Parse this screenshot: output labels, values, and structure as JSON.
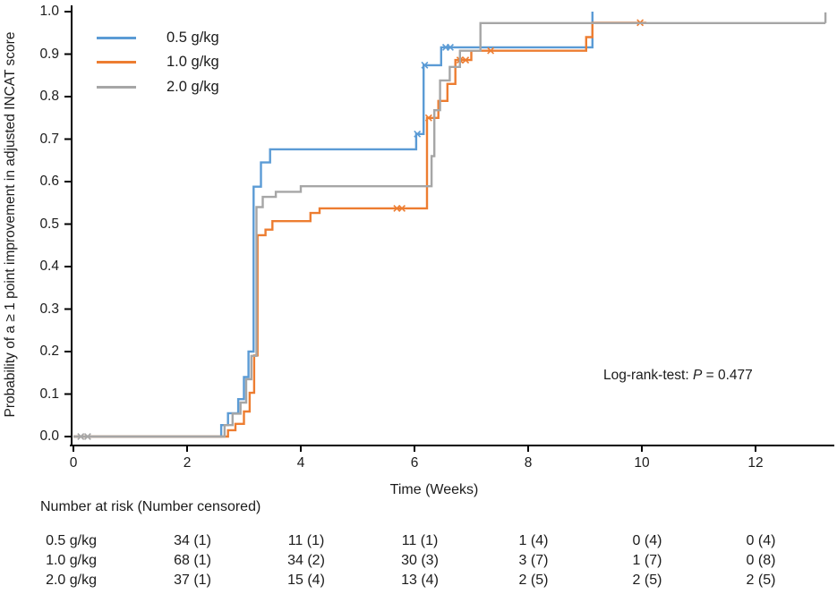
{
  "figure": {
    "y_axis": {
      "title": "Probability of a ≥ 1 point improvement in adjusted INCAT score",
      "ticks": [
        {
          "v": 0.0,
          "label": "0.0"
        },
        {
          "v": 0.1,
          "label": "0.1"
        },
        {
          "v": 0.2,
          "label": "0.2"
        },
        {
          "v": 0.3,
          "label": "0.3"
        },
        {
          "v": 0.4,
          "label": "0.4"
        },
        {
          "v": 0.5,
          "label": "0.5"
        },
        {
          "v": 0.6,
          "label": "0.6"
        },
        {
          "v": 0.7,
          "label": "0.7"
        },
        {
          "v": 0.8,
          "label": "0.8"
        },
        {
          "v": 0.9,
          "label": "0.9"
        },
        {
          "v": 1.0,
          "label": "1.0"
        }
      ]
    },
    "x_axis": {
      "title": "Time (Weeks)",
      "ticks": [
        {
          "v": 0,
          "label": "0"
        },
        {
          "v": 2,
          "label": "2"
        },
        {
          "v": 4,
          "label": "4"
        },
        {
          "v": 6,
          "label": "6"
        },
        {
          "v": 8,
          "label": "8"
        },
        {
          "v": 10,
          "label": "10"
        },
        {
          "v": 12,
          "label": "12"
        }
      ]
    },
    "legend": [
      {
        "label": "0.5 g/kg",
        "color": "#5B9BD5"
      },
      {
        "label": "1.0 g/kg",
        "color": "#ED7D31"
      },
      {
        "label": "2.0 g/kg",
        "color": "#A6A6A6"
      }
    ],
    "annotation": {
      "prefix": "Log-rank-test: ",
      "stat": "P",
      "rest": " = 0.477"
    }
  },
  "chart_data": {
    "type": "line",
    "subtype": "kaplan-meier-step",
    "title": "",
    "xlabel": "Time (Weeks)",
    "ylabel": "Probability of a ≥ 1 point improvement in adjusted INCAT score",
    "xlim": [
      0,
      13.4
    ],
    "ylim": [
      0.0,
      1.0
    ],
    "x_ticks": [
      0,
      2,
      4,
      6,
      8,
      10,
      12
    ],
    "y_ticks": [
      0.0,
      0.1,
      0.2,
      0.3,
      0.4,
      0.5,
      0.6,
      0.7,
      0.8,
      0.9,
      1.0
    ],
    "grid": false,
    "legend_position": "top-left-inside",
    "annotation_text": "Log-rank-test: P = 0.477",
    "series": [
      {
        "name": "0.5 g/kg",
        "color": "#5B9BD5",
        "step_points": [
          [
            0,
            0
          ],
          [
            2.6,
            0.027
          ],
          [
            2.72,
            0.055
          ],
          [
            2.9,
            0.088
          ],
          [
            3.0,
            0.14
          ],
          [
            3.08,
            0.2
          ],
          [
            3.17,
            0.588
          ],
          [
            3.3,
            0.645
          ],
          [
            3.46,
            0.676
          ],
          [
            6.03,
            0.712
          ],
          [
            6.16,
            0.874
          ],
          [
            6.47,
            0.916
          ],
          [
            9.13,
            1.0
          ]
        ],
        "end_time": 9.13,
        "censored": [
          [
            6.05,
            0.712
          ],
          [
            6.18,
            0.874
          ],
          [
            6.55,
            0.916
          ],
          [
            6.63,
            0.916
          ]
        ]
      },
      {
        "name": "1.0 g/kg",
        "color": "#ED7D31",
        "step_points": [
          [
            0,
            0
          ],
          [
            2.72,
            0.015
          ],
          [
            2.85,
            0.03
          ],
          [
            3.0,
            0.059
          ],
          [
            3.1,
            0.103
          ],
          [
            3.18,
            0.191
          ],
          [
            3.24,
            0.474
          ],
          [
            3.38,
            0.487
          ],
          [
            3.5,
            0.507
          ],
          [
            4.17,
            0.526
          ],
          [
            4.33,
            0.537
          ],
          [
            6.22,
            0.75
          ],
          [
            6.42,
            0.79
          ],
          [
            6.58,
            0.83
          ],
          [
            6.72,
            0.886
          ],
          [
            7.0,
            0.908
          ],
          [
            9.02,
            0.94
          ],
          [
            9.13,
            0.974
          ]
        ],
        "end_time": 10.08,
        "censored": [
          [
            5.69,
            0.537
          ],
          [
            5.78,
            0.537
          ],
          [
            6.25,
            0.75
          ],
          [
            6.8,
            0.886
          ],
          [
            6.9,
            0.886
          ],
          [
            7.34,
            0.908
          ],
          [
            9.97,
            0.974
          ]
        ]
      },
      {
        "name": "2.0 g/kg",
        "color": "#A6A6A6",
        "step_points": [
          [
            0,
            0
          ],
          [
            2.66,
            0.027
          ],
          [
            2.8,
            0.054
          ],
          [
            2.94,
            0.08
          ],
          [
            3.04,
            0.135
          ],
          [
            3.13,
            0.19
          ],
          [
            3.22,
            0.54
          ],
          [
            3.33,
            0.564
          ],
          [
            3.56,
            0.576
          ],
          [
            4.0,
            0.589
          ],
          [
            6.3,
            0.66
          ],
          [
            6.35,
            0.768
          ],
          [
            6.45,
            0.838
          ],
          [
            6.62,
            0.87
          ],
          [
            6.8,
            0.908
          ],
          [
            7.16,
            0.973
          ]
        ],
        "end_time": 13.23,
        "censored": [
          [
            0.13,
            0
          ],
          [
            0.25,
            0
          ]
        ],
        "end_tick_censor": [
          13.23,
          0.973
        ]
      }
    ]
  },
  "risk_table": {
    "header": "Number at risk (Number censored)",
    "time_points": [
      2,
      4,
      6,
      8,
      10,
      12
    ],
    "rows": [
      {
        "label": "0.5 g/kg",
        "values": [
          "34 (1)",
          "11 (1)",
          "11 (1)",
          "1 (4)",
          "0 (4)",
          "0 (4)"
        ]
      },
      {
        "label": "1.0 g/kg",
        "values": [
          "68 (1)",
          "34 (2)",
          "30 (3)",
          "3 (7)",
          "1 (7)",
          "0 (8)"
        ]
      },
      {
        "label": "2.0 g/kg",
        "values": [
          "37 (1)",
          "15 (4)",
          "13 (4)",
          "2 (5)",
          "2 (5)",
          "2 (5)"
        ]
      }
    ]
  }
}
